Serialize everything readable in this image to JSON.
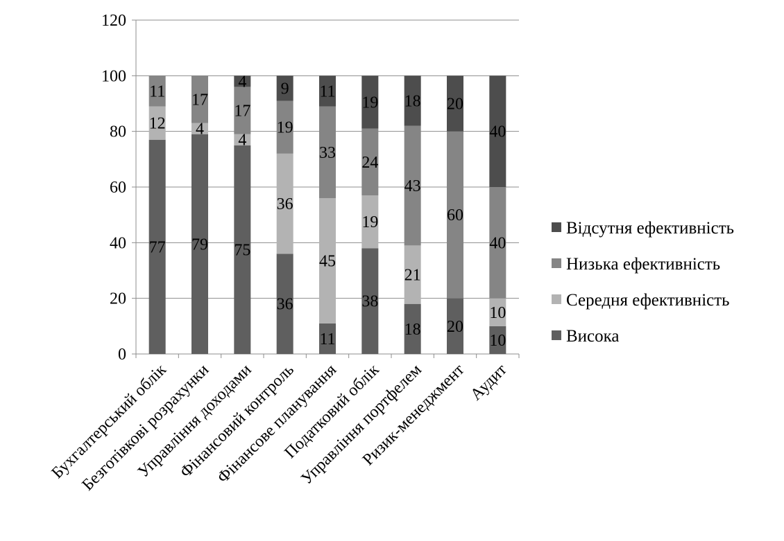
{
  "chart_data": {
    "type": "bar",
    "stacked": true,
    "categories": [
      "Бухгалтерський облік",
      "Безготівкові розрахунки",
      "Управління доходами",
      "Фінансовий контроль",
      "Фінансове планування",
      "Податковий облік",
      "Управління портфелем",
      "Ризик-менеджмент",
      "Аудит"
    ],
    "series": [
      {
        "name": "Висока",
        "color": "#5f5f5f",
        "values": [
          77,
          79,
          75,
          36,
          11,
          38,
          18,
          20,
          10
        ]
      },
      {
        "name": "Середня ефективність",
        "color": "#b3b3b3",
        "values": [
          12,
          4,
          4,
          36,
          45,
          19,
          21,
          0,
          10
        ]
      },
      {
        "name": "Низька ефективність",
        "color": "#858585",
        "values": [
          11,
          17,
          17,
          19,
          33,
          24,
          43,
          60,
          40
        ]
      },
      {
        "name": "Відсутня ефективність",
        "color": "#4d4d4d",
        "values": [
          0,
          0,
          4,
          9,
          11,
          19,
          18,
          20,
          40
        ]
      }
    ],
    "data_labels": [
      [
        "77",
        "79",
        "75",
        "36",
        "11",
        "38",
        "18",
        "20",
        "10"
      ],
      [
        "12",
        "4",
        "4",
        "36",
        "45",
        "19",
        "21",
        "",
        "10"
      ],
      [
        "11",
        "17",
        "17",
        "19",
        "33",
        "24",
        "43",
        "60",
        "40"
      ],
      [
        "",
        "",
        "4",
        "9",
        "11",
        "19",
        "18",
        "20",
        "40"
      ]
    ],
    "ylim": [
      0,
      120
    ],
    "yticks": [
      "0",
      "20",
      "40",
      "60",
      "80",
      "100",
      "120"
    ],
    "ytick_values": [
      0,
      20,
      40,
      60,
      80,
      100,
      120
    ],
    "grid": true,
    "legend_position": "right",
    "legend_order": [
      3,
      2,
      1,
      0
    ]
  }
}
